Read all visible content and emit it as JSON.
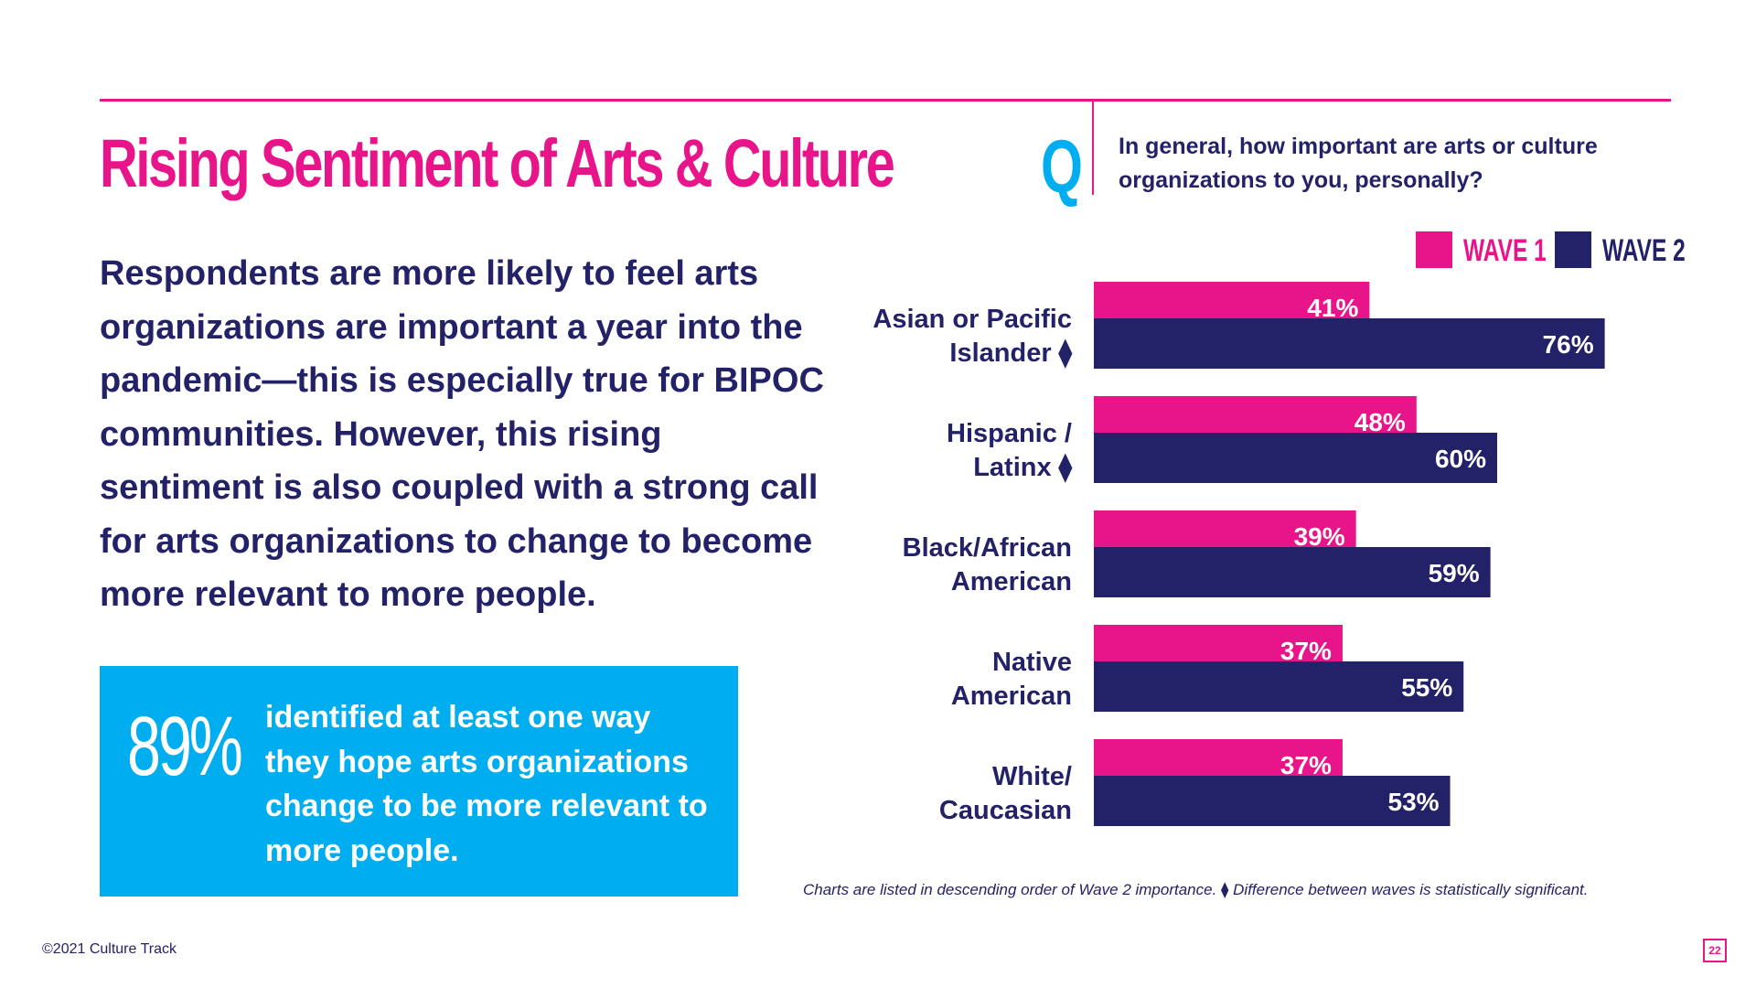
{
  "title": "Rising Sentiment of Arts & Culture",
  "body_text": "Respondents are more likely to feel arts organizations are important a year into the pandemic—this is especially true for BIPOC communities. However, this rising sentiment is also coupled with a strong call for arts organizations to change to become more relevant to more people.",
  "callout": {
    "number": "89%",
    "text": "identified at least one way they hope arts organizations change to be more relevant to more people."
  },
  "question": {
    "letter": "Q",
    "text": "In general, how important are arts or culture organizations to you, personally?"
  },
  "footnote": "Charts are listed in descending order of Wave 2 importance. ⧫ Difference between waves is statistically significant.",
  "copyright": "©2021 Culture Track",
  "page_number": "22",
  "colors": {
    "pink": "#e8148a",
    "navy": "#232268",
    "cyan": "#00aeef"
  },
  "chart_data": {
    "type": "bar",
    "orientation": "horizontal",
    "legend_position": "top-right",
    "grid": false,
    "xlim": [
      0,
      100
    ],
    "categories": [
      [
        "Asian or Pacific",
        "Islander ⧫"
      ],
      [
        "Hispanic /",
        "Latinx ⧫"
      ],
      [
        "Black/African",
        "American"
      ],
      [
        "Native",
        "American"
      ],
      [
        "White/",
        "Caucasian"
      ]
    ],
    "series": [
      {
        "name": "WAVE 1",
        "color": "#e8148a",
        "values": [
          41,
          48,
          39,
          37,
          37
        ],
        "labels": [
          "41%",
          "48%",
          "39%",
          "37%",
          "37%"
        ]
      },
      {
        "name": "WAVE 2",
        "color": "#232268",
        "values": [
          76,
          60,
          59,
          55,
          53
        ],
        "labels": [
          "76%",
          "60%",
          "59%",
          "55%",
          "53%"
        ]
      }
    ]
  }
}
